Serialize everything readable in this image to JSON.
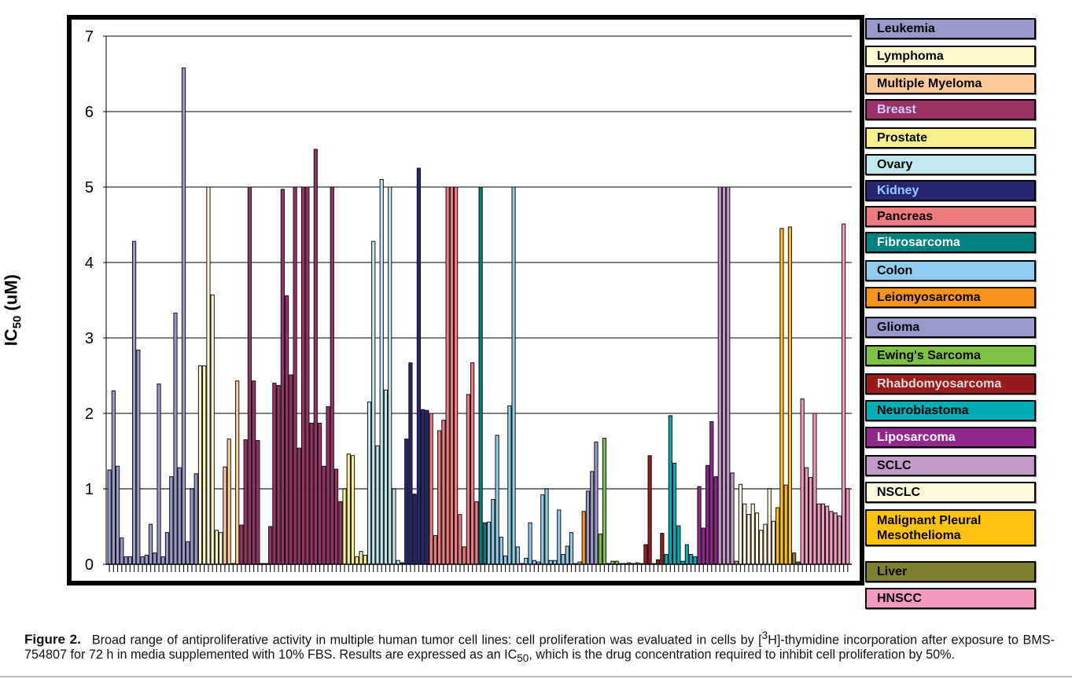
{
  "chart_data": {
    "type": "bar",
    "title": "",
    "xlabel": "",
    "ylabel": "IC50 (uM)",
    "ylabel_main": "IC",
    "ylabel_sub": "50",
    "ylabel_unit": " (uM)",
    "ylim": [
      0,
      7
    ],
    "yticks": [
      "0",
      "1",
      "2",
      "3",
      "4",
      "5",
      "6",
      "7"
    ],
    "grid": true,
    "legend_position": "right",
    "series": [
      {
        "name": "Leukemia",
        "color": "#9999cc",
        "text_color": "#000000",
        "values": [
          1.25,
          2.3,
          1.3,
          0.35,
          0.1,
          0.1,
          4.28,
          2.84,
          0.1,
          0.12,
          0.53,
          0.15,
          2.39,
          0.1,
          0.42,
          1.16,
          3.33,
          1.28,
          6.58,
          0.3,
          1.0,
          1.2
        ]
      },
      {
        "name": "Lymphoma",
        "color": "#fffacd",
        "text_color": "#000000",
        "values": [
          2.63,
          2.63,
          5.0,
          3.57,
          0.45,
          0.42
        ]
      },
      {
        "name": "Multiple Myeloma",
        "color": "#ffcc99",
        "text_color": "#000000",
        "values": [
          1.29,
          1.66,
          0.01,
          2.43
        ]
      },
      {
        "name": "Breast",
        "color": "#993366",
        "text_color": "#ccccff",
        "values": [
          0.52,
          1.65,
          5.0,
          2.43,
          1.64,
          0.01,
          0.01,
          0.5,
          2.4,
          2.37,
          4.97,
          3.56,
          2.51,
          5.0,
          1.54,
          5.0,
          5.0,
          1.87,
          5.5,
          1.87,
          1.3,
          2.09,
          5.0,
          1.26,
          0.83
        ]
      },
      {
        "name": "Prostate",
        "color": "#f7f08c",
        "text_color": "#000000",
        "values": [
          1.0,
          1.46,
          1.44,
          0.1,
          0.17,
          0.12
        ]
      },
      {
        "name": "Ovary",
        "color": "#c2e8ef",
        "text_color": "#000000",
        "values": [
          2.15,
          4.28,
          1.57,
          5.1,
          2.31,
          5.0,
          1.0,
          0.05
        ]
      },
      {
        "name": "Kidney",
        "color": "#262673",
        "text_color": "#99ccff",
        "values": [
          0.02,
          1.66,
          2.67,
          0.93,
          5.25,
          2.05,
          2.04
        ]
      },
      {
        "name": "Pancreas",
        "color": "#ef7b7e",
        "text_color": "#000000",
        "values": [
          2.0,
          0.38,
          1.77,
          1.91,
          5.0,
          5.0,
          5.0,
          0.66,
          0.23,
          2.25,
          2.67,
          0.83
        ]
      },
      {
        "name": "Fibrosarcoma",
        "color": "#008080",
        "text_color": "#ffffff",
        "values": [
          5.0,
          0.55
        ]
      },
      {
        "name": "Colon",
        "color": "#8ecdee",
        "text_color": "#000000",
        "values": [
          0.56,
          0.86,
          1.71,
          0.36,
          0.11,
          2.1,
          5.0,
          0.23,
          0.01,
          0.08,
          0.55,
          0.05,
          0.03,
          0.92,
          1.0,
          0.05,
          0.05,
          0.72,
          0.13,
          0.24,
          0.42,
          0.01,
          0.03
        ]
      },
      {
        "name": "Leiomyosarcoma",
        "color": "#f7941d",
        "text_color": "#000000",
        "values": [
          0.7
        ]
      },
      {
        "name": "Glioma",
        "color": "#9999cc",
        "text_color": "#000000",
        "values": [
          0.97,
          1.23,
          1.62
        ]
      },
      {
        "name": "Ewing's Sarcoma",
        "color": "#7dc242",
        "text_color": "#000000",
        "values": [
          0.4,
          1.67,
          0.01,
          0.04,
          0.04,
          0.01,
          0.01,
          0.02,
          0.01,
          0.02
        ]
      },
      {
        "name": "Rhabdomyosarcoma",
        "color": "#981b1e",
        "text_color": "#dddddd",
        "values": [
          0.01,
          0.26,
          1.44,
          0.01,
          0.06,
          0.41
        ]
      },
      {
        "name": "Neuroblastoma",
        "color": "#00aeb8",
        "text_color": "#000000",
        "values": [
          0.13,
          1.97,
          1.34,
          0.51,
          0.04,
          0.26,
          0.13,
          0.1
        ]
      },
      {
        "name": "Liposarcoma",
        "color": "#92278f",
        "text_color": "#ffffff",
        "values": [
          1.03,
          0.48,
          1.31,
          1.89,
          1.16
        ]
      },
      {
        "name": "SCLC",
        "color": "#c39bc8",
        "text_color": "#000000",
        "values": [
          5.0,
          5.0,
          5.0,
          1.21,
          0.04
        ]
      },
      {
        "name": "NSCLC",
        "color": "#fffadc",
        "text_color": "#000000",
        "values": [
          1.06,
          0.8,
          0.66,
          0.8,
          0.68,
          0.45,
          0.53,
          1.0,
          0.57
        ]
      },
      {
        "name": "Malignant Pleural Mesothelioma",
        "label_lines": [
          "Malignant Pleural",
          "Mesothelioma"
        ],
        "color": "#ffc20e",
        "text_color": "#000000",
        "values": [
          0.75,
          4.45,
          1.05,
          4.47
        ]
      },
      {
        "name": "Liver",
        "color": "#808033",
        "text_color": "#000000",
        "values": [
          0.15,
          0.03
        ]
      },
      {
        "name": "HNSCC",
        "color": "#f49ac1",
        "text_color": "#000000",
        "values": [
          2.19,
          1.28,
          1.15,
          2.0,
          0.8,
          0.8,
          0.77,
          0.7,
          0.68,
          0.64,
          4.51,
          1.0
        ]
      }
    ]
  },
  "caption": {
    "figure_label": "Figure 2.",
    "text_part1": "Broad range of antiproliferative activity in multiple human tumor cell lines: cell proliferation was evaluated in cells by [",
    "superscript": "3",
    "text_part2": "H]-thymidine incorporation after exposure to BMS-754807 for 72 h in media supplemented with 10% FBS. Results are expressed as an IC",
    "subscript": "50",
    "text_part3": ", which is the drug concentration required to inhibit cell proliferation by 50%."
  }
}
